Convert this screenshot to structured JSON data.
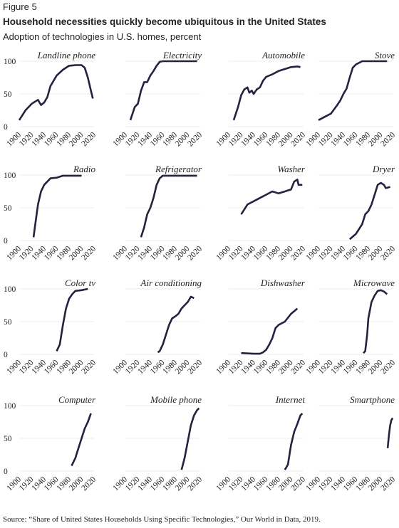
{
  "figure_label": "Figure 5",
  "title": "Household necessities quickly become ubiquitous in the United States",
  "subtitle": "Adoption of technologies in U.S. homes, percent",
  "source": "Source: “Share of United States Households Using Specific Technologies,” Our World in Data, 2019.",
  "chart_data": [
    {
      "type": "line",
      "title": "Landline phone",
      "color": "#24223f",
      "grid": true,
      "xlim": [
        1900,
        2020
      ],
      "ylim": [
        0,
        100
      ],
      "xticks": [
        1900,
        1920,
        1940,
        1960,
        1980,
        2000,
        2020
      ],
      "yticks": [
        0,
        50,
        100
      ],
      "x": [
        1900,
        1910,
        1920,
        1930,
        1935,
        1940,
        1945,
        1950,
        1960,
        1970,
        1980,
        1990,
        2000,
        2005,
        2010,
        2015,
        2018
      ],
      "values": [
        10,
        25,
        35,
        41,
        33,
        37,
        45,
        62,
        78,
        87,
        93,
        94,
        94,
        90,
        75,
        55,
        43
      ]
    },
    {
      "type": "line",
      "title": "Electricity",
      "color": "#24223f",
      "grid": true,
      "xlim": [
        1900,
        2020
      ],
      "ylim": [
        0,
        100
      ],
      "xticks": [
        1900,
        1920,
        1940,
        1960,
        1980,
        2000,
        2020
      ],
      "yticks": [
        0,
        50,
        100
      ],
      "x": [
        1908,
        1915,
        1920,
        1925,
        1930,
        1935,
        1940,
        1945,
        1950,
        1955,
        1960,
        2015
      ],
      "values": [
        10,
        30,
        35,
        55,
        68,
        68,
        78,
        85,
        93,
        99,
        100,
        100
      ]
    },
    {
      "type": "line",
      "title": "Automobile",
      "color": "#24223f",
      "grid": true,
      "xlim": [
        1900,
        2020
      ],
      "ylim": [
        0,
        100
      ],
      "xticks": [
        1900,
        1920,
        1940,
        1960,
        1980,
        2000,
        2020
      ],
      "yticks": [
        0,
        50,
        100
      ],
      "x": [
        1908,
        1915,
        1920,
        1925,
        1930,
        1933,
        1937,
        1940,
        1945,
        1950,
        1955,
        1960,
        1970,
        1980,
        1990,
        2000,
        2010,
        2015
      ],
      "values": [
        10,
        30,
        48,
        57,
        60,
        52,
        55,
        50,
        57,
        60,
        70,
        76,
        80,
        85,
        88,
        91,
        92,
        91
      ]
    },
    {
      "type": "line",
      "title": "Stove",
      "color": "#24223f",
      "grid": true,
      "xlim": [
        1900,
        2020
      ],
      "ylim": [
        0,
        100
      ],
      "xticks": [
        1900,
        1920,
        1940,
        1960,
        1980,
        2000,
        2020
      ],
      "yticks": [
        0,
        50,
        100
      ],
      "x": [
        1900,
        1910,
        1920,
        1930,
        1935,
        1940,
        1945,
        1950,
        1955,
        1960,
        1970,
        2010
      ],
      "values": [
        10,
        15,
        20,
        33,
        40,
        50,
        58,
        75,
        90,
        95,
        100,
        100
      ]
    },
    {
      "type": "line",
      "title": "Radio",
      "color": "#24223f",
      "grid": true,
      "xlim": [
        1900,
        2020
      ],
      "ylim": [
        0,
        100
      ],
      "xticks": [
        1900,
        1920,
        1940,
        1960,
        1980,
        2000,
        2020
      ],
      "yticks": [
        0,
        50,
        100
      ],
      "x": [
        1923,
        1925,
        1930,
        1935,
        1940,
        1945,
        1950,
        1960,
        1970,
        2000
      ],
      "values": [
        5,
        20,
        55,
        75,
        85,
        90,
        95,
        96,
        99,
        99
      ]
    },
    {
      "type": "line",
      "title": "Refrigerator",
      "color": "#24223f",
      "grid": true,
      "xlim": [
        1900,
        2020
      ],
      "ylim": [
        0,
        100
      ],
      "xticks": [
        1900,
        1920,
        1940,
        1960,
        1980,
        2000,
        2020
      ],
      "yticks": [
        0,
        50,
        100
      ],
      "x": [
        1925,
        1930,
        1935,
        1940,
        1945,
        1950,
        1955,
        1960,
        2015
      ],
      "values": [
        5,
        20,
        40,
        50,
        65,
        85,
        95,
        99,
        99
      ]
    },
    {
      "type": "line",
      "title": "Washer",
      "color": "#24223f",
      "grid": true,
      "xlim": [
        1900,
        2020
      ],
      "ylim": [
        0,
        100
      ],
      "xticks": [
        1900,
        1920,
        1940,
        1960,
        1980,
        2000,
        2020
      ],
      "yticks": [
        0,
        50,
        100
      ],
      "x": [
        1920,
        1930,
        1940,
        1950,
        1960,
        1970,
        1980,
        1990,
        2000,
        2005,
        2010,
        2012,
        2018
      ],
      "values": [
        40,
        55,
        60,
        65,
        70,
        75,
        72,
        75,
        78,
        90,
        93,
        85,
        85
      ]
    },
    {
      "type": "line",
      "title": "Dryer",
      "color": "#24223f",
      "grid": true,
      "xlim": [
        1900,
        2020
      ],
      "ylim": [
        0,
        100
      ],
      "xticks": [
        1900,
        1920,
        1940,
        1960,
        1980,
        2000,
        2020
      ],
      "yticks": [
        0,
        50,
        100
      ],
      "x": [
        1950,
        1960,
        1970,
        1975,
        1980,
        1985,
        1990,
        1995,
        2000,
        2005,
        2008,
        2015
      ],
      "values": [
        2,
        10,
        25,
        40,
        45,
        55,
        70,
        85,
        88,
        85,
        80,
        82
      ]
    },
    {
      "type": "line",
      "title": "Color tv",
      "color": "#24223f",
      "grid": true,
      "xlim": [
        1900,
        2020
      ],
      "ylim": [
        0,
        100
      ],
      "xticks": [
        1900,
        1920,
        1940,
        1960,
        1980,
        2000,
        2020
      ],
      "yticks": [
        0,
        50,
        100
      ],
      "x": [
        1960,
        1965,
        1970,
        1975,
        1980,
        1985,
        1990,
        2000,
        2010
      ],
      "values": [
        5,
        15,
        45,
        70,
        85,
        92,
        97,
        98,
        100
      ]
    },
    {
      "type": "line",
      "title": "Air conditioning",
      "color": "#24223f",
      "grid": true,
      "xlim": [
        1900,
        2020
      ],
      "ylim": [
        0,
        100
      ],
      "xticks": [
        1900,
        1920,
        1940,
        1960,
        1980,
        2000,
        2020
      ],
      "yticks": [
        0,
        50,
        100
      ],
      "x": [
        1952,
        1955,
        1960,
        1965,
        1970,
        1975,
        1980,
        1985,
        1990,
        1995,
        2000,
        2005,
        2010
      ],
      "values": [
        3,
        5,
        15,
        30,
        45,
        55,
        58,
        62,
        70,
        75,
        80,
        88,
        86
      ]
    },
    {
      "type": "line",
      "title": "Dishwasher",
      "color": "#24223f",
      "grid": true,
      "xlim": [
        1900,
        2020
      ],
      "ylim": [
        0,
        100
      ],
      "xticks": [
        1900,
        1920,
        1940,
        1960,
        1980,
        2000,
        2020
      ],
      "yticks": [
        0,
        50,
        100
      ],
      "x": [
        1920,
        1940,
        1950,
        1955,
        1960,
        1965,
        1970,
        1975,
        1980,
        1990,
        2000,
        2010
      ],
      "values": [
        2,
        1,
        1,
        3,
        7,
        15,
        25,
        40,
        45,
        50,
        62,
        70
      ]
    },
    {
      "type": "line",
      "title": "Microwave",
      "color": "#24223f",
      "grid": true,
      "xlim": [
        1900,
        2020
      ],
      "ylim": [
        0,
        100
      ],
      "xticks": [
        1900,
        1920,
        1940,
        1960,
        1980,
        2000,
        2020
      ],
      "yticks": [
        0,
        50,
        100
      ],
      "x": [
        1972,
        1975,
        1978,
        1980,
        1985,
        1990,
        1995,
        2000,
        2005,
        2010
      ],
      "values": [
        2,
        5,
        30,
        55,
        80,
        90,
        97,
        98,
        96,
        92
      ]
    },
    {
      "type": "line",
      "title": "Computer",
      "color": "#24223f",
      "grid": true,
      "xlim": [
        1900,
        2020
      ],
      "ylim": [
        0,
        100
      ],
      "xticks": [
        1900,
        1920,
        1940,
        1960,
        1980,
        2000,
        2020
      ],
      "yticks": [
        0,
        50,
        100
      ],
      "x": [
        1984,
        1990,
        1995,
        2000,
        2005,
        2010,
        2015
      ],
      "values": [
        8,
        20,
        35,
        50,
        65,
        75,
        88
      ]
    },
    {
      "type": "line",
      "title": "Mobile phone",
      "color": "#24223f",
      "grid": true,
      "xlim": [
        1900,
        2020
      ],
      "ylim": [
        0,
        100
      ],
      "xticks": [
        1900,
        1920,
        1940,
        1960,
        1980,
        2000,
        2020
      ],
      "yticks": [
        0,
        50,
        100
      ],
      "x": [
        1990,
        1995,
        2000,
        2005,
        2010,
        2015,
        2018
      ],
      "values": [
        2,
        20,
        45,
        70,
        85,
        93,
        96
      ]
    },
    {
      "type": "line",
      "title": "Internet",
      "color": "#24223f",
      "grid": true,
      "xlim": [
        1900,
        2020
      ],
      "ylim": [
        0,
        100
      ],
      "xticks": [
        1900,
        1920,
        1940,
        1960,
        1980,
        2000,
        2020
      ],
      "yticks": [
        0,
        50,
        100
      ],
      "x": [
        1990,
        1995,
        2000,
        2005,
        2010,
        2015,
        2018
      ],
      "values": [
        2,
        10,
        40,
        60,
        72,
        85,
        88
      ]
    },
    {
      "type": "line",
      "title": "Smartphone",
      "color": "#24223f",
      "grid": true,
      "xlim": [
        1900,
        2020
      ],
      "ylim": [
        0,
        100
      ],
      "xticks": [
        1900,
        1920,
        1940,
        1960,
        1980,
        2000,
        2020
      ],
      "yticks": [
        0,
        50,
        100
      ],
      "x": [
        2011,
        2013,
        2015,
        2017,
        2019
      ],
      "values": [
        35,
        55,
        70,
        78,
        81
      ]
    }
  ]
}
